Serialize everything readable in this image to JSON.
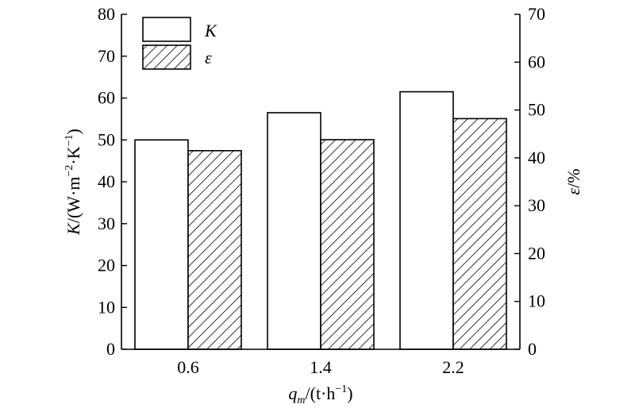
{
  "chart_data": {
    "type": "bar",
    "categories": [
      "0.6",
      "1.4",
      "2.2"
    ],
    "series": [
      {
        "name": "K",
        "axis": "left",
        "fill": "white",
        "values": [
          50,
          56.5,
          61.5
        ]
      },
      {
        "name": "ε",
        "axis": "right",
        "fill": "hatched",
        "values": [
          41.5,
          43.8,
          48.2
        ]
      }
    ],
    "left_axis": {
      "label_prefix": "K",
      "label_rest": "/(W·m",
      "label_sup1": "−2",
      "label_mid": "·K",
      "label_sup2": "−1",
      "label_end": ")",
      "min": 0,
      "max": 80,
      "ticks": [
        0,
        10,
        20,
        30,
        40,
        50,
        60,
        70,
        80
      ]
    },
    "right_axis": {
      "label_prefix": "ε",
      "label_rest": "/%",
      "min": 0,
      "max": 70,
      "ticks": [
        0,
        10,
        20,
        30,
        40,
        50,
        60,
        70
      ]
    },
    "x_axis": {
      "label_prefix": "q",
      "label_sub": "m",
      "label_rest": "/(t·h",
      "label_sup": "−1",
      "label_end": ")"
    },
    "legend": {
      "placement": "top-left"
    },
    "colors": {
      "stroke": "#000000",
      "bar_fill": "#ffffff"
    }
  }
}
